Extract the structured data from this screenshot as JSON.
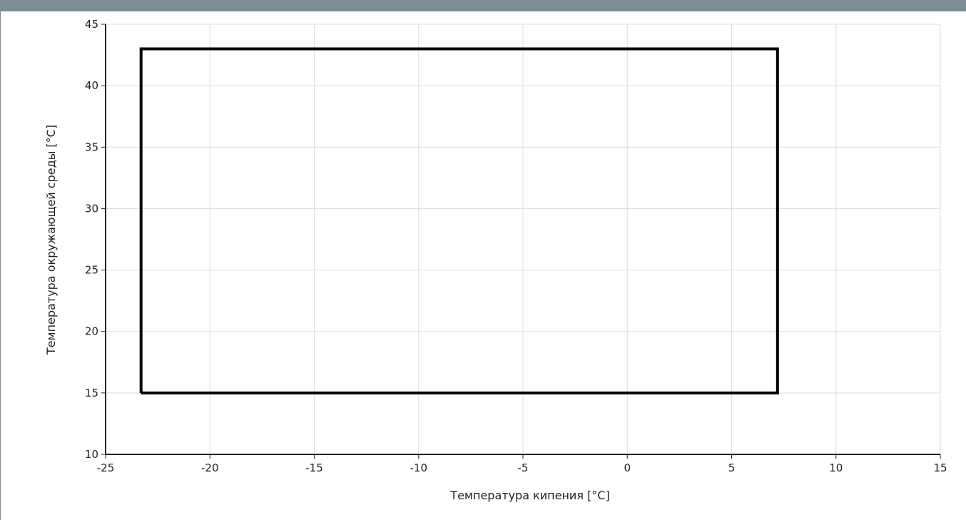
{
  "chart_data": {
    "type": "line",
    "title": "",
    "xlabel": "Температура кипения [°C]",
    "ylabel": "Температура окружающей среды [°C]",
    "xlim": [
      -25,
      15
    ],
    "ylim": [
      10,
      45
    ],
    "xticks": [
      -25,
      -20,
      -15,
      -10,
      -5,
      0,
      5,
      10,
      15
    ],
    "yticks": [
      10,
      15,
      20,
      25,
      30,
      35,
      40,
      45
    ],
    "xtick_labels": [
      "-25",
      "-20",
      "-15",
      "-10",
      "-5",
      "0",
      "5",
      "10",
      "15"
    ],
    "ytick_labels": [
      "10",
      "15",
      "20",
      "25",
      "30",
      "35",
      "40",
      "45"
    ],
    "grid": true,
    "series": [
      {
        "x": [
          -23.3,
          7.2,
          7.2,
          -23.3,
          -23.3
        ],
        "y": [
          15,
          15,
          43,
          43,
          15
        ],
        "color": "#000000"
      }
    ]
  },
  "colors": {
    "header": "#7e8c94",
    "grid": "#dcdcdc",
    "axis": "#222222"
  }
}
